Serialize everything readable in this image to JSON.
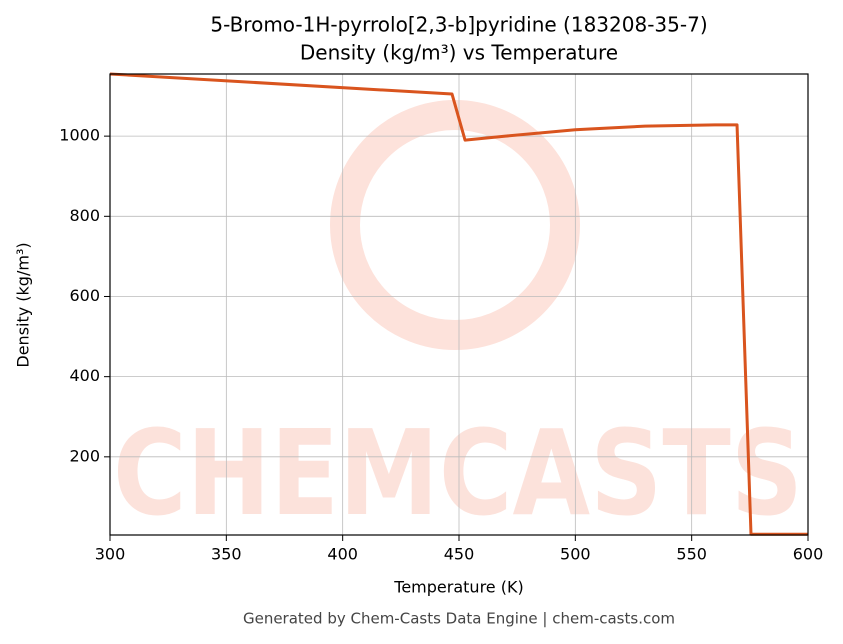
{
  "chart_data": {
    "type": "line",
    "title": "5-Bromo-1H-pyrrolo[2,3-b]pyridine (183208-35-7)",
    "subtitle": "Density (kg/m³) vs Temperature",
    "x_label": "Temperature (K)",
    "y_label": "Density (kg/m³)",
    "footer": "Generated by Chem-Casts Data Engine | chem-casts.com",
    "watermark": "CHEMCASTS",
    "x": [
      300,
      447,
      452.6,
      470,
      500,
      530,
      560,
      569.5,
      575.5,
      600
    ],
    "series": [
      {
        "name": "Density",
        "color": "#d9541e",
        "values": [
          1155,
          1105,
          990,
          1000,
          1016,
          1025,
          1028,
          1028,
          7,
          7
        ]
      }
    ],
    "xlim": [
      300,
      600
    ],
    "xticks": [
      300,
      350,
      400,
      450,
      500,
      550,
      600
    ],
    "ylim": [
      5,
      1155
    ],
    "yticks": [
      200,
      400,
      600,
      800,
      1000
    ],
    "grid": true
  }
}
